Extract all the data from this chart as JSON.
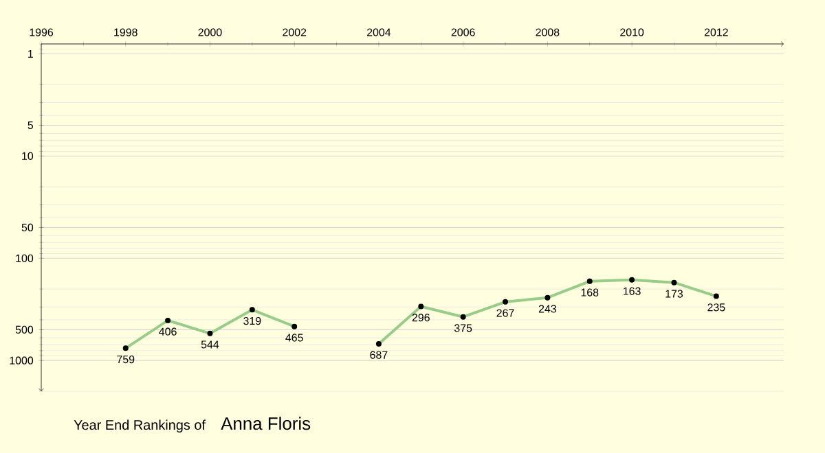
{
  "chart_data": {
    "type": "line",
    "title": "Year End Rankings of",
    "subtitle": "Anna Floris",
    "x": [
      1998,
      1999,
      2000,
      2001,
      2002,
      2003,
      2004,
      2005,
      2006,
      2007,
      2008,
      2009,
      2010,
      2011,
      2012
    ],
    "series": [
      {
        "color": "#99cc88",
        "values": [
          759,
          406,
          544,
          319,
          465,
          null,
          687,
          296,
          375,
          267,
          243,
          168,
          163,
          173,
          235
        ]
      }
    ],
    "xlim": [
      1996,
      2013.6
    ],
    "xticks": [
      1996,
      1998,
      2000,
      2002,
      2004,
      2006,
      2008,
      2010,
      2012
    ],
    "ylim": [
      2000,
      0.8
    ],
    "yticks": [
      1,
      5,
      10,
      50,
      100,
      500,
      1000
    ],
    "log": "y",
    "grid": "y",
    "marker": "circle",
    "data_labels": true
  }
}
